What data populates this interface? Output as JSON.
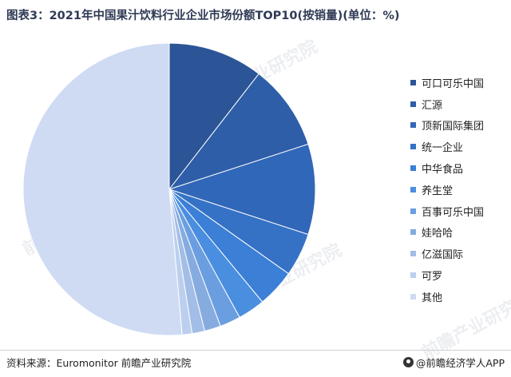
{
  "title": "图表3：2021年中国果汁饮料行业企业市场份额TOP10(按销量)(单位：%)",
  "source": "资料来源：Euromonitor 前瞻产业研究院",
  "credit": "@前瞻经济学人APP",
  "watermark": "前瞻产业研究院",
  "chart_data": {
    "type": "pie",
    "title": "图表3：2021年中国果汁饮料行业企业市场份额TOP10(按销量)(单位：%)",
    "start_angle_deg": 0,
    "direction": "clockwise",
    "legend_position": "right",
    "slices": [
      {
        "name": "可口可乐中国",
        "value": 10.5,
        "color": "#2c5597"
      },
      {
        "name": "汇源",
        "value": 9.5,
        "color": "#2e5ea8"
      },
      {
        "name": "顶新国际集团",
        "value": 10.0,
        "color": "#3167b8"
      },
      {
        "name": "统一企业",
        "value": 4.8,
        "color": "#3572c6"
      },
      {
        "name": "中华食品",
        "value": 4.2,
        "color": "#3b7fd6"
      },
      {
        "name": "养生堂",
        "value": 3.0,
        "color": "#4a8ee0"
      },
      {
        "name": "百事可乐中国",
        "value": 2.3,
        "color": "#6b9ee0"
      },
      {
        "name": "娃哈哈",
        "value": 1.8,
        "color": "#86acdf"
      },
      {
        "name": "亿滋国际",
        "value": 1.4,
        "color": "#a2bde6"
      },
      {
        "name": "可罗",
        "value": 1.1,
        "color": "#bccfee"
      },
      {
        "name": "其他",
        "value": 51.4,
        "color": "#cfdbf3"
      }
    ]
  }
}
